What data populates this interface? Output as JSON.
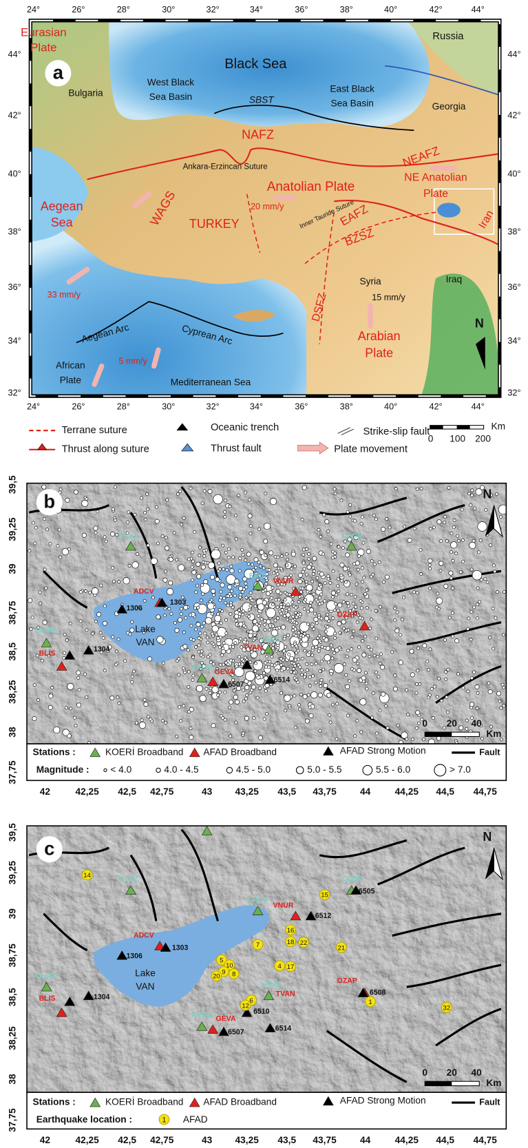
{
  "panel_a": {
    "label": "a",
    "x_ticks": [
      "24°",
      "26°",
      "28°",
      "30°",
      "32°",
      "34°",
      "36°",
      "38°",
      "40°",
      "42°",
      "44°"
    ],
    "y_ticks": [
      "44°",
      "42°",
      "40°",
      "38°",
      "36°",
      "34°",
      "32°"
    ],
    "labels": [
      "Eurasian",
      "Plate",
      "Russia",
      "Black Sea",
      "West Black",
      "Sea Basin",
      "East Black",
      "Sea Basin",
      "Bulgaria",
      "SBST",
      "Georgia",
      "NAFZ",
      "NEAFZ",
      "Ankara-Erzincan Suture",
      "NE Anatolian",
      "Plate",
      "Anatolian Plate",
      "Aegean",
      "Sea",
      "WAGS",
      "20 mm/y",
      "TURKEY",
      "Inner Tauride Suture",
      "EAFZ",
      "BZSZ",
      "Iran",
      "Syria",
      "Iraq",
      "33 mm/y",
      "15 mm/y",
      "DSFZ",
      "Aegean Arc",
      "Cyprean Arc",
      "Arabian",
      "Plate",
      "5 mm/y",
      "African",
      "Plate",
      "Mediterranean Sea",
      "N"
    ],
    "legend": [
      "Terrane suture",
      "Thrust along suture",
      "Oceanic trench",
      "Thrust fault",
      "Strike-slip fault",
      "Plate movement"
    ],
    "scale": [
      "0",
      "100",
      "200",
      "Km"
    ]
  },
  "panel_b": {
    "label": "b",
    "x_ticks": [
      "42",
      "42,25",
      "42,5",
      "42,75",
      "43",
      "43,25",
      "43,5",
      "43,75",
      "44",
      "44,25",
      "44,5",
      "44,75"
    ],
    "y_ticks": [
      "39,5",
      "39,25",
      "39",
      "38,75",
      "38,5",
      "38,25",
      "38",
      "37,75"
    ],
    "station_labels": [
      "MLAZ",
      "ERCI",
      "CLDR",
      "VNUR",
      "ADCV",
      "OZAP",
      "GURO",
      "BLIS",
      "VANB",
      "TVAN",
      "AKDM",
      "GEVA"
    ],
    "strong_motion_labels": [
      "1306",
      "1303",
      "1304",
      "6507",
      "6514"
    ],
    "lake": [
      "Lake",
      "VAN"
    ],
    "north": "N",
    "scale": [
      "0",
      "20",
      "40",
      "Km"
    ],
    "legend_stations": [
      "Stations :",
      "KOERİ Broadband",
      "AFAD Broadband",
      "AFAD Strong Motion",
      "Fault"
    ],
    "legend_magnitude": [
      "Magnitude :",
      "< 4.0",
      "4.0 - 4.5",
      "4.5 - 5.0",
      "5.0 - 5.5",
      "5.5 - 6.0",
      "> 7.0"
    ]
  },
  "panel_c": {
    "label": "c",
    "x_ticks": [
      "42",
      "42,25",
      "42,5",
      "42,75",
      "43",
      "43,25",
      "43,5",
      "43,75",
      "44",
      "44,25",
      "44,5",
      "44,75"
    ],
    "y_ticks": [
      "39,5",
      "39,25",
      "39",
      "38,75",
      "38,5",
      "38,25",
      "38",
      "37,75"
    ],
    "station_labels": [
      "MLAZ",
      "ERCV",
      "CLDR",
      "VNUR",
      "ADCV",
      "OZAP",
      "GURO",
      "BLIS",
      "VANB",
      "TVAN",
      "AKDM",
      "GEVA"
    ],
    "strong_motion_labels": [
      "6505",
      "6512",
      "1306",
      "1303",
      "6508",
      "1304",
      "6510",
      "6507",
      "6514"
    ],
    "earthquake_labels": [
      "14",
      "15",
      "16",
      "18",
      "22",
      "7",
      "21",
      "5",
      "10",
      "4",
      "17",
      "9",
      "20",
      "8",
      "6",
      "12",
      "1",
      "32"
    ],
    "lake": [
      "Lake",
      "VAN"
    ],
    "north": "N",
    "scale": [
      "0",
      "20",
      "40",
      "Km"
    ],
    "legend_stations": [
      "Stations :",
      "KOERİ Broadband",
      "AFAD Broadband",
      "AFAD Strong Motion",
      "Fault"
    ],
    "legend_location": [
      "Earthquake location :",
      "1",
      "AFAD"
    ]
  }
}
